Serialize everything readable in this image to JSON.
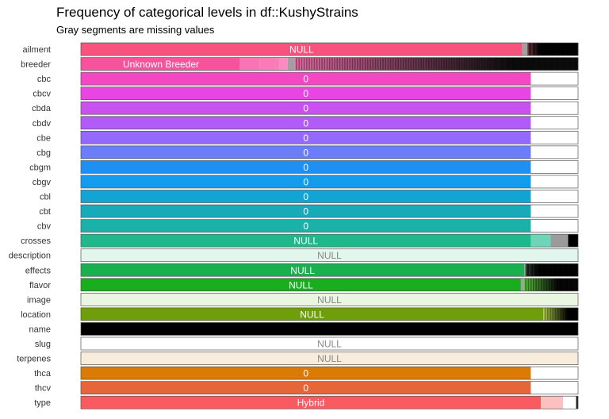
{
  "chart_data": {
    "type": "bar",
    "orientation": "horizontal-stacked-proportion",
    "title": "Frequency of categorical levels in df::KushyStrains",
    "subtitle": "Gray segments are missing values",
    "xlabel": "",
    "ylabel": "",
    "legend": "none",
    "missing_color": "#A0A0A0",
    "rows": [
      {
        "name": "ailment",
        "color": "#F8537E",
        "label": "NULL",
        "label_color": "#FFFFFF",
        "segments": [
          {
            "v": 0.888,
            "c": "#F8537E"
          },
          {
            "v": 0.01,
            "c": "#A0A0A0"
          }
        ],
        "tail": "dark"
      },
      {
        "name": "breeder",
        "color": "#F9529F",
        "label": "Unknown Breeder",
        "label_color": "#FFFFFF",
        "segments": [
          {
            "v": 0.32,
            "c": "#F8529D"
          },
          {
            "v": 0.04,
            "c": "#F874B4"
          },
          {
            "v": 0.018,
            "c": "#F97AB6"
          },
          {
            "v": 0.012,
            "c": "#F87CBA"
          },
          {
            "v": 0.01,
            "c": "#F87EB8"
          },
          {
            "v": 0.016,
            "c": "#F98BC0"
          },
          {
            "v": 0.014,
            "c": "#A0A0A0"
          }
        ],
        "tail": "barcode"
      },
      {
        "name": "cbc",
        "color": "#F447C4",
        "label": "0",
        "label_color": "#FFFFFF",
        "segments": [
          {
            "v": 0.905,
            "c": "#F447C4"
          },
          {
            "v": 0.095,
            "c": "#FFFFFF"
          }
        ]
      },
      {
        "name": "cbcv",
        "color": "#E945E4",
        "label": "0",
        "label_color": "#FFFFFF",
        "segments": [
          {
            "v": 0.905,
            "c": "#E945E4"
          },
          {
            "v": 0.095,
            "c": "#FFFFFF"
          }
        ]
      },
      {
        "name": "cbda",
        "color": "#CB50F0",
        "label": "0",
        "label_color": "#FFFFFF",
        "segments": [
          {
            "v": 0.905,
            "c": "#CB50F0"
          },
          {
            "v": 0.095,
            "c": "#FFFFFF"
          }
        ]
      },
      {
        "name": "cbdv",
        "color": "#B15CF8",
        "label": "0",
        "label_color": "#FFFFFF",
        "segments": [
          {
            "v": 0.905,
            "c": "#B15CF8"
          },
          {
            "v": 0.095,
            "c": "#FFFFFF"
          }
        ]
      },
      {
        "name": "cbe",
        "color": "#9569FB",
        "label": "0",
        "label_color": "#FFFFFF",
        "segments": [
          {
            "v": 0.905,
            "c": "#9569FB"
          },
          {
            "v": 0.095,
            "c": "#FFFFFF"
          }
        ]
      },
      {
        "name": "cbg",
        "color": "#6C7DFA",
        "label": "0",
        "label_color": "#FFFFFF",
        "segments": [
          {
            "v": 0.905,
            "c": "#6C7DFA"
          },
          {
            "v": 0.095,
            "c": "#FFFFFF"
          }
        ]
      },
      {
        "name": "cbgm",
        "color": "#1E90F4",
        "label": "0",
        "label_color": "#FFFFFF",
        "segments": [
          {
            "v": 0.905,
            "c": "#1E90F4"
          },
          {
            "v": 0.095,
            "c": "#FFFFFF"
          }
        ]
      },
      {
        "name": "cbgv",
        "color": "#139CEE",
        "label": "0",
        "label_color": "#FFFFFF",
        "segments": [
          {
            "v": 0.905,
            "c": "#139CEE"
          },
          {
            "v": 0.095,
            "c": "#FFFFFF"
          }
        ]
      },
      {
        "name": "cbl",
        "color": "#13A4D6",
        "label": "0",
        "label_color": "#FFFFFF",
        "segments": [
          {
            "v": 0.905,
            "c": "#13A4D6"
          },
          {
            "v": 0.095,
            "c": "#FFFFFF"
          }
        ]
      },
      {
        "name": "cbt",
        "color": "#17AAB8",
        "label": "0",
        "label_color": "#FFFFFF",
        "segments": [
          {
            "v": 0.905,
            "c": "#17AAB8"
          },
          {
            "v": 0.095,
            "c": "#FFFFFF"
          }
        ]
      },
      {
        "name": "cbv",
        "color": "#1AB2A8",
        "label": "0",
        "label_color": "#FFFFFF",
        "segments": [
          {
            "v": 0.905,
            "c": "#1AB2A8"
          },
          {
            "v": 0.095,
            "c": "#FFFFFF"
          }
        ]
      },
      {
        "name": "crosses",
        "color": "#1EB88C",
        "label": "NULL",
        "label_color": "#FFFFFF",
        "segments": [
          {
            "v": 0.905,
            "c": "#1EB88C"
          },
          {
            "v": 0.04,
            "c": "#6DD6B8"
          },
          {
            "v": 0.035,
            "c": "#9B9B9B"
          },
          {
            "v": 0.02,
            "c": "#000000"
          }
        ]
      },
      {
        "name": "description",
        "color": "#E2F6EE",
        "label": "NULL",
        "label_color": "#888888",
        "segments": [
          {
            "v": 1.0,
            "c": "#E2F6EE"
          }
        ]
      },
      {
        "name": "effects",
        "color": "#19B04E",
        "label": "NULL",
        "label_color": "#FFFFFF",
        "segments": [
          {
            "v": 0.892,
            "c": "#19B04E"
          },
          {
            "v": 0.002,
            "c": "#A0A0A0"
          }
        ],
        "tail": "dark"
      },
      {
        "name": "flavor",
        "color": "#18AE1E",
        "label": "NULL",
        "label_color": "#FFFFFF",
        "segments": [
          {
            "v": 0.885,
            "c": "#18AE1E"
          },
          {
            "v": 0.006,
            "c": "#A0A0A0"
          }
        ],
        "tail": "greenfade"
      },
      {
        "name": "image",
        "color": "#EAF5E2",
        "label": "NULL",
        "label_color": "#888888",
        "segments": [
          {
            "v": 1.0,
            "c": "#EAF5E2"
          }
        ]
      },
      {
        "name": "location",
        "color": "#6E9E0A",
        "label": "NULL",
        "label_color": "#FFFFFF",
        "segments": [
          {
            "v": 0.93,
            "c": "#6E9E0A"
          }
        ],
        "tail": "olivefade"
      },
      {
        "name": "name",
        "color": "#000000",
        "label": "",
        "label_color": "#FFFFFF",
        "segments": [
          {
            "v": 1.0,
            "c": "#000000"
          }
        ],
        "tail": "fullbarcode"
      },
      {
        "name": "slug",
        "color": "#FFFFFF",
        "label": "NULL",
        "label_color": "#888888",
        "segments": [
          {
            "v": 1.0,
            "c": "#FFFFFF"
          }
        ]
      },
      {
        "name": "terpenes",
        "color": "#F8EDDC",
        "label": "NULL",
        "label_color": "#888888",
        "segments": [
          {
            "v": 1.0,
            "c": "#F8EDDC"
          }
        ]
      },
      {
        "name": "thca",
        "color": "#DA7B08",
        "label": "0",
        "label_color": "#FFFFFF",
        "segments": [
          {
            "v": 0.905,
            "c": "#DA7B08"
          },
          {
            "v": 0.095,
            "c": "#FFFFFF"
          }
        ]
      },
      {
        "name": "thcv",
        "color": "#E5663A",
        "label": "0",
        "label_color": "#FFFFFF",
        "segments": [
          {
            "v": 0.905,
            "c": "#E5663A"
          },
          {
            "v": 0.095,
            "c": "#FFFFFF"
          }
        ]
      },
      {
        "name": "type",
        "color": "#F85A5F",
        "label": "Hybrid",
        "label_color": "#FFFFFF",
        "segments": [
          {
            "v": 0.925,
            "c": "#F85A5F"
          },
          {
            "v": 0.045,
            "c": "#FBC0C0"
          },
          {
            "v": 0.026,
            "c": "#FFFFFF"
          },
          {
            "v": 0.004,
            "c": "#222222"
          }
        ]
      }
    ]
  }
}
